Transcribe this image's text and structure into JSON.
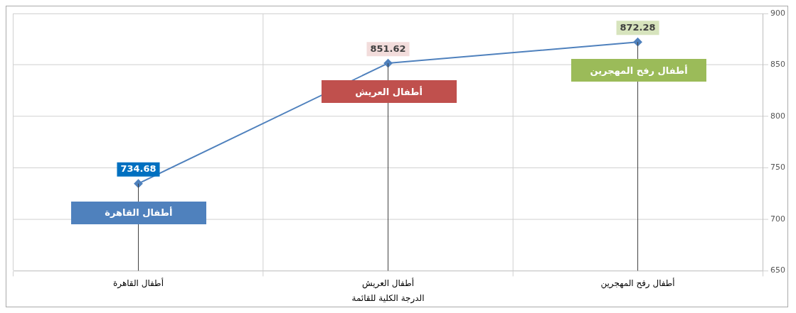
{
  "chart_data": {
    "type": "line",
    "xlabel": "الدرجة الكلية للقائمة",
    "categories": [
      "أطفال القاهرة",
      "أطفال العريش",
      "أطفال رفح المهجرين"
    ],
    "series": [
      {
        "color": "#4f81bd",
        "values": [
          734.68,
          851.62,
          872.28
        ]
      }
    ],
    "ylim": [
      650,
      900
    ],
    "yticks": [
      650,
      700,
      750,
      800,
      850,
      900
    ],
    "grid": true,
    "legend": false,
    "marker": "diamond",
    "line_style": "solid",
    "data_labels": true,
    "annotations": [
      "أطفال القاهرة",
      "أطفال العريش",
      "أطفال رفح المهجرين"
    ]
  }
}
